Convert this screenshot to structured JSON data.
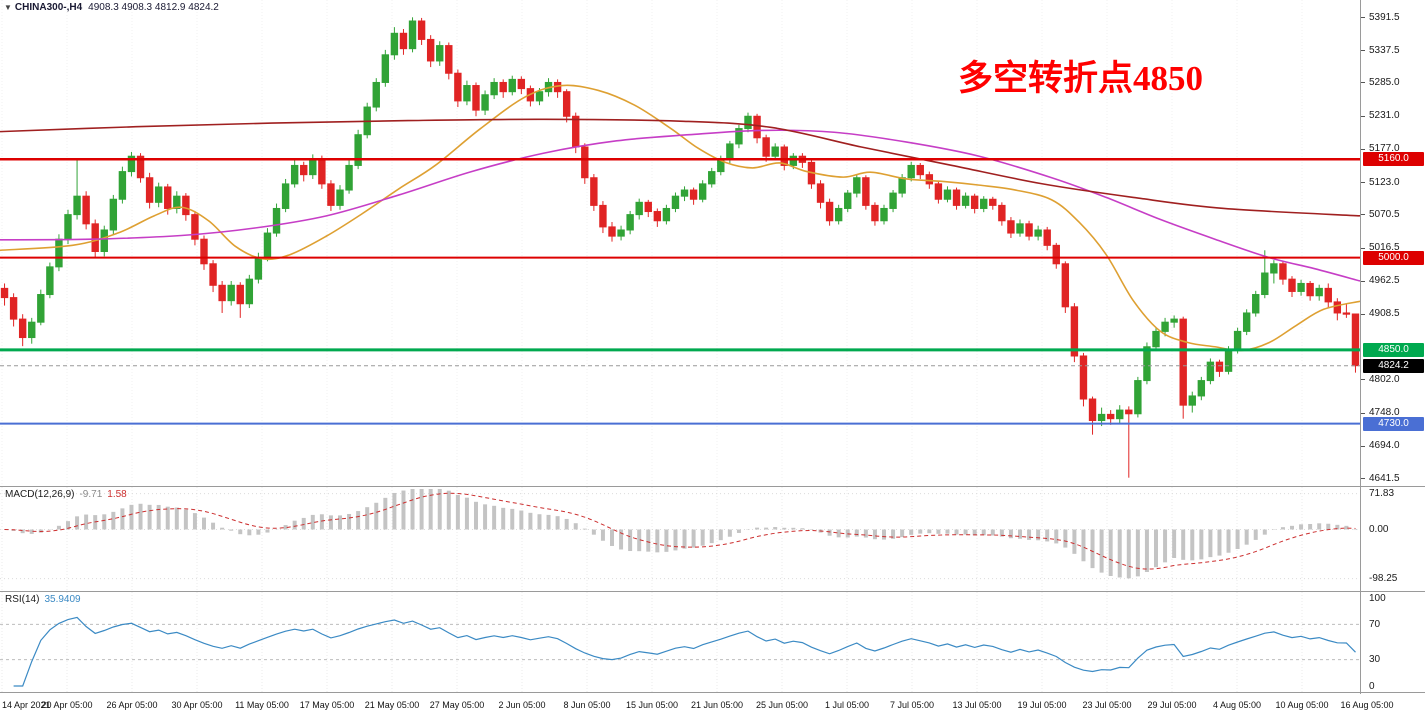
{
  "header": {
    "dropdown_icon": "▼",
    "symbol": "CHINA300-,H4",
    "ohlc": "4908.3 4908.3 4812.9 4824.2"
  },
  "annotation": {
    "text": "多空转折点4850",
    "color": "#ff0000"
  },
  "current_price": {
    "label": "4824.2",
    "value": 4824.2,
    "color": "#000000"
  },
  "levels": [
    {
      "label": "5160.0",
      "price": 5160.0,
      "color": "#dd0000",
      "width": 2.5
    },
    {
      "label": "5000.0",
      "price": 5000.0,
      "color": "#dd0000",
      "width": 2
    },
    {
      "label": "4850.0",
      "price": 4850.0,
      "color": "#00a94f",
      "width": 3
    },
    {
      "label": "4730.0",
      "price": 4730.0,
      "color": "#4a6fd4",
      "width": 2
    }
  ],
  "price_axis": {
    "labels": [
      "5391.5",
      "5337.5",
      "5285.0",
      "5231.0",
      "5177.0",
      "5123.0",
      "5070.5",
      "5016.5",
      "4962.5",
      "4908.5",
      "4802.0",
      "4748.0",
      "4694.0",
      "4641.5"
    ]
  },
  "macd": {
    "name": "MACD(12,26,9)",
    "value": "-9.71",
    "signal": "1.58",
    "axis_labels": [
      71.83,
      0.0,
      -98.25
    ],
    "histogram_color": "#c4c4c4",
    "signal_color": "#cc2f2f"
  },
  "rsi": {
    "name": "RSI(14)",
    "value": "35.9409",
    "axis_labels": [
      100,
      70,
      30,
      0
    ],
    "overbought": 70,
    "oversold": 30,
    "line_color": "#3b8ac4"
  },
  "time_axis": {
    "labels": [
      "14 Apr 2021",
      "20 Apr 05:00",
      "26 Apr 05:00",
      "30 Apr 05:00",
      "11 May 05:00",
      "17 May 05:00",
      "21 May 05:00",
      "27 May 05:00",
      "2 Jun 05:00",
      "8 Jun 05:00",
      "15 Jun 05:00",
      "21 Jun 05:00",
      "25 Jun 05:00",
      "1 Jul 05:00",
      "7 Jul 05:00",
      "13 Jul 05:00",
      "19 Jul 05:00",
      "23 Jul 05:00",
      "29 Jul 05:00",
      "4 Aug 05:00",
      "10 Aug 05:00",
      "16 Aug 05:00"
    ]
  },
  "chart_data": {
    "type": "candlestick",
    "symbol": "CHINA300-",
    "timeframe": "H4",
    "ylim": [
      4641.5,
      5391.5
    ],
    "up_color": "#31a336",
    "down_color": "#e02424",
    "grid": "light-dotted-vertical",
    "candles": [
      [
        4950,
        4958,
        4922,
        4935
      ],
      [
        4935,
        4942,
        4888,
        4900
      ],
      [
        4900,
        4908,
        4856,
        4870
      ],
      [
        4870,
        4902,
        4860,
        4895
      ],
      [
        4895,
        4948,
        4890,
        4940
      ],
      [
        4940,
        4992,
        4934,
        4985
      ],
      [
        4985,
        5038,
        4978,
        5030
      ],
      [
        5030,
        5078,
        5022,
        5070
      ],
      [
        5070,
        5162,
        5062,
        5100
      ],
      [
        5100,
        5108,
        5046,
        5055
      ],
      [
        5055,
        5062,
        5000,
        5010
      ],
      [
        5010,
        5052,
        5002,
        5045
      ],
      [
        5045,
        5102,
        5038,
        5095
      ],
      [
        5095,
        5148,
        5088,
        5140
      ],
      [
        5140,
        5172,
        5132,
        5165
      ],
      [
        5165,
        5170,
        5122,
        5130
      ],
      [
        5130,
        5138,
        5080,
        5090
      ],
      [
        5090,
        5122,
        5082,
        5115
      ],
      [
        5115,
        5120,
        5070,
        5080
      ],
      [
        5080,
        5108,
        5072,
        5100
      ],
      [
        5100,
        5105,
        5060,
        5070
      ],
      [
        5070,
        5076,
        5020,
        5030
      ],
      [
        5030,
        5036,
        4980,
        4990
      ],
      [
        4990,
        4996,
        4944,
        4955
      ],
      [
        4955,
        4962,
        4910,
        4930
      ],
      [
        4930,
        4962,
        4922,
        4955
      ],
      [
        4955,
        4960,
        4902,
        4925
      ],
      [
        4925,
        4972,
        4918,
        4965
      ],
      [
        4965,
        5008,
        4958,
        5000
      ],
      [
        5000,
        5048,
        4994,
        5040
      ],
      [
        5040,
        5088,
        5034,
        5080
      ],
      [
        5080,
        5128,
        5074,
        5120
      ],
      [
        5120,
        5158,
        5114,
        5150
      ],
      [
        5150,
        5156,
        5124,
        5135
      ],
      [
        5135,
        5168,
        5128,
        5160
      ],
      [
        5160,
        5166,
        5112,
        5120
      ],
      [
        5120,
        5126,
        5076,
        5085
      ],
      [
        5085,
        5118,
        5078,
        5110
      ],
      [
        5110,
        5158,
        5104,
        5150
      ],
      [
        5150,
        5208,
        5144,
        5200
      ],
      [
        5200,
        5252,
        5194,
        5245
      ],
      [
        5245,
        5292,
        5238,
        5285
      ],
      [
        5285,
        5338,
        5278,
        5330
      ],
      [
        5330,
        5375,
        5322,
        5365
      ],
      [
        5365,
        5372,
        5330,
        5340
      ],
      [
        5340,
        5391,
        5334,
        5385
      ],
      [
        5385,
        5390,
        5346,
        5355
      ],
      [
        5355,
        5362,
        5310,
        5320
      ],
      [
        5320,
        5352,
        5312,
        5345
      ],
      [
        5345,
        5350,
        5290,
        5300
      ],
      [
        5300,
        5306,
        5245,
        5255
      ],
      [
        5255,
        5288,
        5248,
        5280
      ],
      [
        5280,
        5285,
        5230,
        5240
      ],
      [
        5240,
        5272,
        5232,
        5265
      ],
      [
        5265,
        5292,
        5258,
        5285
      ],
      [
        5285,
        5290,
        5260,
        5270
      ],
      [
        5270,
        5296,
        5264,
        5290
      ],
      [
        5290,
        5295,
        5266,
        5275
      ],
      [
        5275,
        5280,
        5246,
        5255
      ],
      [
        5255,
        5276,
        5248,
        5270
      ],
      [
        5270,
        5292,
        5262,
        5285
      ],
      [
        5285,
        5290,
        5260,
        5270
      ],
      [
        5270,
        5274,
        5220,
        5230
      ],
      [
        5230,
        5236,
        5170,
        5180
      ],
      [
        5180,
        5186,
        5120,
        5130
      ],
      [
        5130,
        5136,
        5076,
        5085
      ],
      [
        5085,
        5092,
        5040,
        5050
      ],
      [
        5050,
        5058,
        5026,
        5035
      ],
      [
        5035,
        5052,
        5028,
        5045
      ],
      [
        5045,
        5076,
        5038,
        5070
      ],
      [
        5070,
        5096,
        5062,
        5090
      ],
      [
        5090,
        5094,
        5066,
        5075
      ],
      [
        5075,
        5080,
        5050,
        5060
      ],
      [
        5060,
        5086,
        5054,
        5080
      ],
      [
        5080,
        5106,
        5074,
        5100
      ],
      [
        5100,
        5116,
        5092,
        5110
      ],
      [
        5110,
        5114,
        5086,
        5095
      ],
      [
        5095,
        5126,
        5090,
        5120
      ],
      [
        5120,
        5146,
        5114,
        5140
      ],
      [
        5140,
        5166,
        5134,
        5160
      ],
      [
        5160,
        5190,
        5154,
        5185
      ],
      [
        5185,
        5216,
        5178,
        5210
      ],
      [
        5210,
        5236,
        5204,
        5230
      ],
      [
        5230,
        5234,
        5186,
        5195
      ],
      [
        5195,
        5200,
        5156,
        5165
      ],
      [
        5165,
        5186,
        5158,
        5180
      ],
      [
        5180,
        5184,
        5142,
        5150
      ],
      [
        5150,
        5170,
        5144,
        5165
      ],
      [
        5165,
        5170,
        5146,
        5155
      ],
      [
        5155,
        5160,
        5112,
        5120
      ],
      [
        5120,
        5126,
        5080,
        5090
      ],
      [
        5090,
        5096,
        5052,
        5060
      ],
      [
        5060,
        5086,
        5054,
        5080
      ],
      [
        5080,
        5110,
        5074,
        5105
      ],
      [
        5105,
        5136,
        5098,
        5130
      ],
      [
        5130,
        5134,
        5078,
        5085
      ],
      [
        5085,
        5090,
        5052,
        5060
      ],
      [
        5060,
        5086,
        5054,
        5080
      ],
      [
        5080,
        5110,
        5074,
        5105
      ],
      [
        5105,
        5136,
        5098,
        5130
      ],
      [
        5130,
        5156,
        5124,
        5150
      ],
      [
        5150,
        5154,
        5128,
        5135
      ],
      [
        5135,
        5140,
        5112,
        5120
      ],
      [
        5120,
        5124,
        5088,
        5095
      ],
      [
        5095,
        5116,
        5090,
        5110
      ],
      [
        5110,
        5114,
        5078,
        5085
      ],
      [
        5085,
        5106,
        5080,
        5100
      ],
      [
        5100,
        5104,
        5072,
        5080
      ],
      [
        5080,
        5100,
        5074,
        5095
      ],
      [
        5095,
        5099,
        5078,
        5085
      ],
      [
        5085,
        5090,
        5052,
        5060
      ],
      [
        5060,
        5066,
        5032,
        5040
      ],
      [
        5040,
        5062,
        5034,
        5055
      ],
      [
        5055,
        5060,
        5028,
        5035
      ],
      [
        5035,
        5052,
        5028,
        5045
      ],
      [
        5045,
        5050,
        5012,
        5020
      ],
      [
        5020,
        5024,
        4982,
        4990
      ],
      [
        4990,
        4994,
        4910,
        4920
      ],
      [
        4920,
        4926,
        4830,
        4840
      ],
      [
        4840,
        4845,
        4758,
        4770
      ],
      [
        4770,
        4774,
        4712,
        4735
      ],
      [
        4735,
        4756,
        4726,
        4745
      ],
      [
        4745,
        4752,
        4728,
        4738
      ],
      [
        4738,
        4760,
        4730,
        4752
      ],
      [
        4752,
        4758,
        4642,
        4746
      ],
      [
        4746,
        4806,
        4740,
        4800
      ],
      [
        4800,
        4862,
        4794,
        4855
      ],
      [
        4855,
        4886,
        4848,
        4880
      ],
      [
        4880,
        4902,
        4872,
        4895
      ],
      [
        4895,
        4906,
        4886,
        4900
      ],
      [
        4900,
        4904,
        4738,
        4760
      ],
      [
        4760,
        4782,
        4748,
        4775
      ],
      [
        4775,
        4806,
        4768,
        4800
      ],
      [
        4800,
        4836,
        4794,
        4830
      ],
      [
        4830,
        4834,
        4806,
        4815
      ],
      [
        4815,
        4856,
        4810,
        4850
      ],
      [
        4850,
        4886,
        4844,
        4880
      ],
      [
        4880,
        4916,
        4874,
        4910
      ],
      [
        4910,
        4946,
        4904,
        4940
      ],
      [
        4940,
        5012,
        4934,
        4975
      ],
      [
        4975,
        4996,
        4958,
        4990
      ],
      [
        4990,
        4994,
        4956,
        4965
      ],
      [
        4965,
        4970,
        4936,
        4945
      ],
      [
        4945,
        4964,
        4938,
        4958
      ],
      [
        4958,
        4962,
        4930,
        4938
      ],
      [
        4938,
        4956,
        4930,
        4950
      ],
      [
        4950,
        4958,
        4918,
        4928
      ],
      [
        4928,
        4934,
        4898,
        4910
      ],
      [
        4910,
        4924,
        4902,
        4908
      ],
      [
        4908.3,
        4908.3,
        4812.9,
        4824.2
      ]
    ],
    "moving_averages": [
      {
        "name": "ma-fast",
        "color": "#dea032",
        "points": [
          [
            0,
            5012
          ],
          [
            8,
            5020
          ],
          [
            13,
            5040
          ],
          [
            17,
            5068
          ],
          [
            20,
            5082
          ],
          [
            23,
            5060
          ],
          [
            26,
            5018
          ],
          [
            29,
            4998
          ],
          [
            32,
            5005
          ],
          [
            36,
            5035
          ],
          [
            40,
            5072
          ],
          [
            44,
            5112
          ],
          [
            48,
            5150
          ],
          [
            53,
            5210
          ],
          [
            58,
            5262
          ],
          [
            62,
            5280
          ],
          [
            66,
            5272
          ],
          [
            70,
            5248
          ],
          [
            74,
            5210
          ],
          [
            77,
            5178
          ],
          [
            80,
            5155
          ],
          [
            83,
            5146
          ],
          [
            86,
            5154
          ],
          [
            89,
            5140
          ],
          [
            93,
            5131
          ],
          [
            96,
            5139
          ],
          [
            100,
            5128
          ],
          [
            104,
            5124
          ],
          [
            108,
            5118
          ],
          [
            112,
            5110
          ],
          [
            116,
            5094
          ],
          [
            119,
            5058
          ],
          [
            122,
            5005
          ],
          [
            125,
            4930
          ],
          [
            128,
            4880
          ],
          [
            131,
            4862
          ],
          [
            134,
            4855
          ],
          [
            137,
            4849
          ],
          [
            140,
            4862
          ],
          [
            143,
            4890
          ],
          [
            146,
            4916
          ],
          [
            150,
            4929
          ]
        ]
      },
      {
        "name": "ma-mid",
        "color": "#c63ec6",
        "points": [
          [
            0,
            5029
          ],
          [
            10,
            5030
          ],
          [
            20,
            5036
          ],
          [
            28,
            5048
          ],
          [
            36,
            5068
          ],
          [
            44,
            5102
          ],
          [
            52,
            5140
          ],
          [
            60,
            5170
          ],
          [
            68,
            5190
          ],
          [
            76,
            5200
          ],
          [
            84,
            5207
          ],
          [
            92,
            5204
          ],
          [
            100,
            5188
          ],
          [
            108,
            5165
          ],
          [
            116,
            5130
          ],
          [
            122,
            5098
          ],
          [
            128,
            5062
          ],
          [
            134,
            5030
          ],
          [
            140,
            5000
          ],
          [
            145,
            4982
          ],
          [
            150,
            4962
          ]
        ]
      },
      {
        "name": "ma-slow",
        "color": "#a02020",
        "points": [
          [
            0,
            5205
          ],
          [
            15,
            5213
          ],
          [
            30,
            5219
          ],
          [
            45,
            5223
          ],
          [
            60,
            5225
          ],
          [
            75,
            5222
          ],
          [
            85,
            5212
          ],
          [
            95,
            5180
          ],
          [
            105,
            5150
          ],
          [
            115,
            5120
          ],
          [
            125,
            5098
          ],
          [
            135,
            5080
          ],
          [
            150,
            5068
          ]
        ]
      }
    ]
  }
}
